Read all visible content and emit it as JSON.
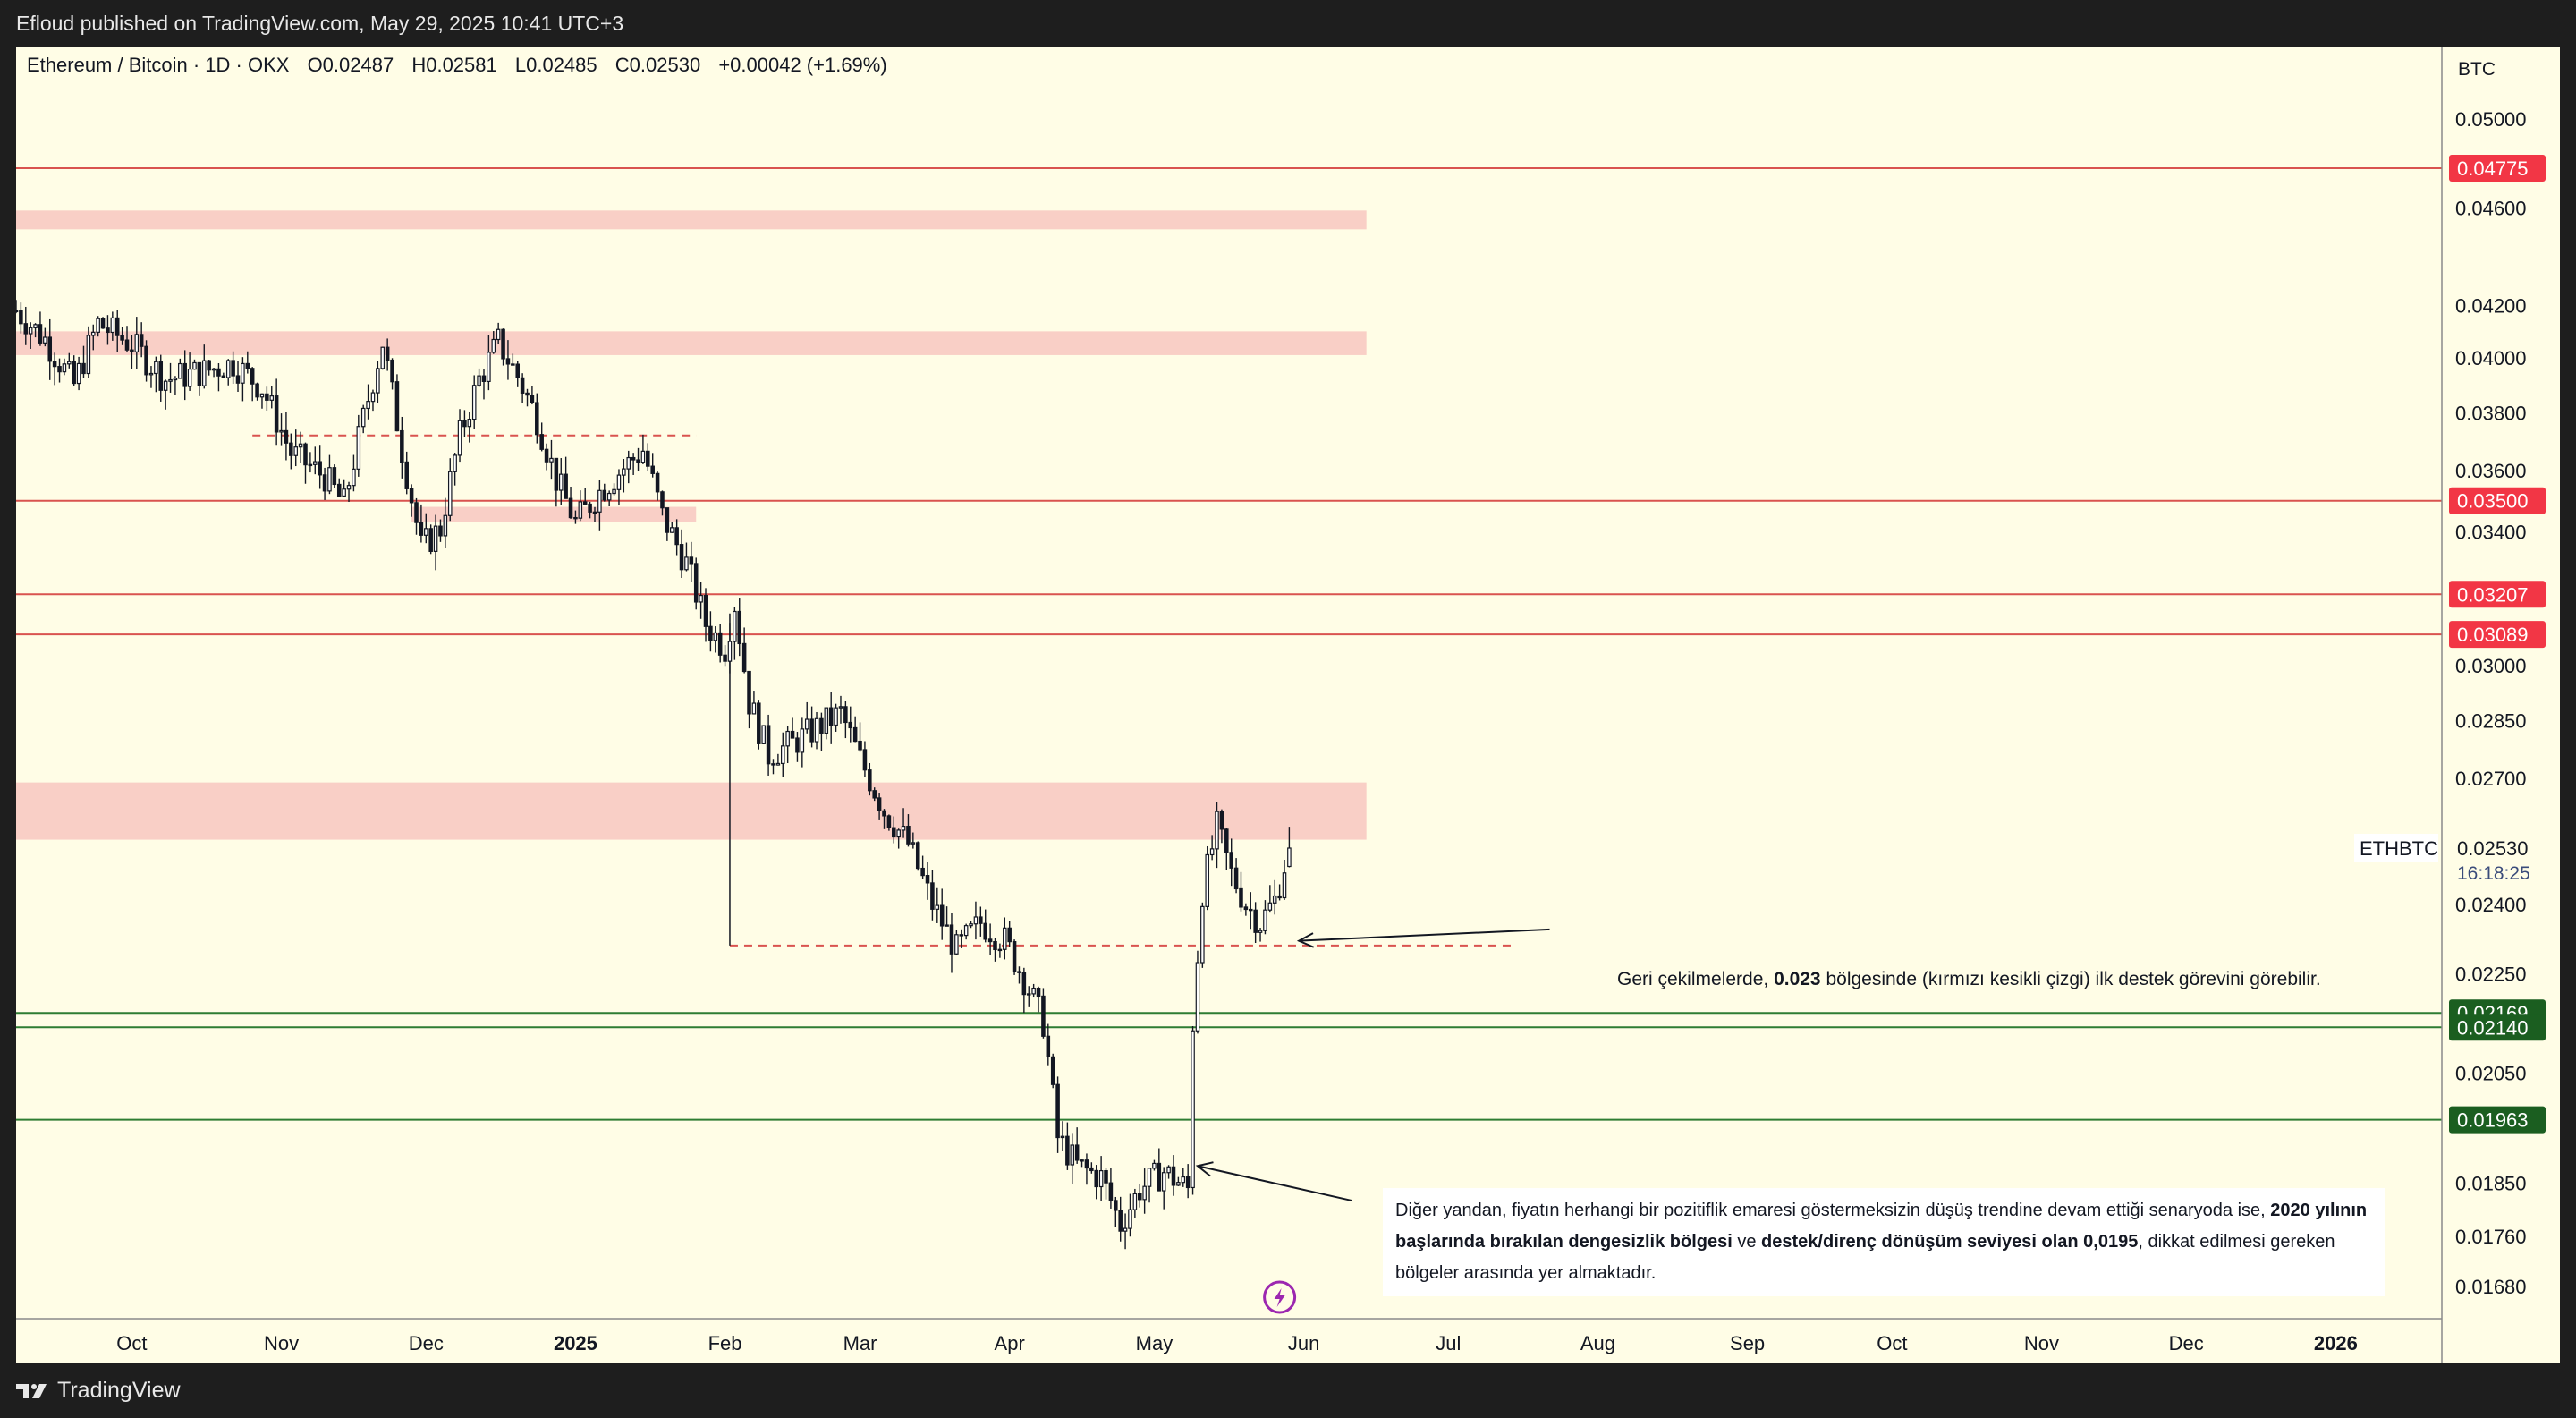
{
  "header": {
    "published": "Efloud published on TradingView.com, May 29, 2025 10:41 UTC+3"
  },
  "footer": {
    "brand": "TradingView"
  },
  "legend": {
    "symbol": "Ethereum / Bitcoin · 1D · OKX",
    "open": "O0.02487",
    "high": "H0.02581",
    "low": "L0.02485",
    "close": "C0.02530",
    "change": "+0.00042 (+1.69%)"
  },
  "axis_currency": "BTC",
  "symbol_tag": "ETHBTC",
  "last_price": "0.02530",
  "countdown": "16:18:25",
  "notes": {
    "note1_pre": "Geri çekilmelerde, ",
    "note1_bold": "0.023",
    "note1_post": " bölgesinde (kırmızı kesikli çizgi) ilk destek görevini görebilir.",
    "note2_a": "Diğer yandan, fiyatın herhangi bir pozitiflik emaresi göstermeksizin düşüş trendine devam ettiği senaryoda ise, ",
    "note2_b": "2020 yılının başlarında bırakılan dengesizlik bölgesi",
    "note2_c": " ve ",
    "note2_d": "destek/direnç dönüşüm seviyesi olan 0,0195",
    "note2_e": ", dikkat edilmesi gereken bölgeler arasında yer almaktadır."
  },
  "colors": {
    "background": "#fffde6",
    "red_line": "#d9534f",
    "red_label": "#f23645",
    "green_line": "#2e7d32",
    "green_label": "#1b5e20",
    "zone": "#f9cfc6",
    "candle": "#131722"
  },
  "chart_data": {
    "type": "candlestick",
    "title": "Ethereum / Bitcoin · 1D · OKX",
    "ylabel": "BTC",
    "y_scale": "log",
    "ylim": [
      0.0163,
      0.0535
    ],
    "y_ticks": [
      0.05,
      0.046,
      0.042,
      0.04,
      0.038,
      0.036,
      0.034,
      0.03,
      0.0285,
      0.027,
      0.024,
      0.0225,
      0.0205,
      0.0185,
      0.0176,
      0.0168
    ],
    "y_tick_labels": [
      "0.05000",
      "0.04600",
      "0.04200",
      "0.04000",
      "0.03800",
      "0.03600",
      "0.03400",
      "0.03000",
      "0.02850",
      "0.02700",
      "0.02400",
      "0.02250",
      "0.02050",
      "0.01850",
      "0.01760",
      "0.01680"
    ],
    "x_range": [
      "2024-09-07",
      "2026-01-23"
    ],
    "x_ticks": [
      {
        "date": "2024-10-01",
        "label": "Oct"
      },
      {
        "date": "2024-11-01",
        "label": "Nov"
      },
      {
        "date": "2024-12-01",
        "label": "Dec"
      },
      {
        "date": "2025-01-01",
        "label": "2025",
        "bold": true
      },
      {
        "date": "2025-02-01",
        "label": "Feb"
      },
      {
        "date": "2025-03-01",
        "label": "Mar"
      },
      {
        "date": "2025-04-01",
        "label": "Apr"
      },
      {
        "date": "2025-05-01",
        "label": "May"
      },
      {
        "date": "2025-06-01",
        "label": "Jun"
      },
      {
        "date": "2025-07-01",
        "label": "Jul"
      },
      {
        "date": "2025-08-01",
        "label": "Aug"
      },
      {
        "date": "2025-09-01",
        "label": "Sep"
      },
      {
        "date": "2025-10-01",
        "label": "Oct"
      },
      {
        "date": "2025-11-01",
        "label": "Nov"
      },
      {
        "date": "2025-12-01",
        "label": "Dec"
      },
      {
        "date": "2026-01-01",
        "label": "2026",
        "bold": true
      }
    ],
    "price_path": [
      [
        "2024-09-07",
        0.0418
      ],
      [
        "2024-09-13",
        0.0407
      ],
      [
        "2024-09-19",
        0.039
      ],
      [
        "2024-09-24",
        0.0413
      ],
      [
        "2024-10-01",
        0.0405
      ],
      [
        "2024-10-08",
        0.0392
      ],
      [
        "2024-10-16",
        0.0395
      ],
      [
        "2024-10-22",
        0.0398
      ],
      [
        "2024-10-28",
        0.0389
      ],
      [
        "2024-11-03",
        0.0366
      ],
      [
        "2024-11-10",
        0.0358
      ],
      [
        "2024-11-14",
        0.0349
      ],
      [
        "2024-11-19",
        0.0385
      ],
      [
        "2024-11-22",
        0.0406
      ],
      [
        "2024-11-26",
        0.0367
      ],
      [
        "2024-11-30",
        0.0335
      ],
      [
        "2024-12-04",
        0.0341
      ],
      [
        "2024-12-08",
        0.0372
      ],
      [
        "2024-12-12",
        0.0392
      ],
      [
        "2024-12-16",
        0.0406
      ],
      [
        "2024-12-20",
        0.0393
      ],
      [
        "2024-12-24",
        0.0378
      ],
      [
        "2024-12-28",
        0.0357
      ],
      [
        "2025-01-01",
        0.0343
      ],
      [
        "2025-01-06",
        0.0353
      ],
      [
        "2025-01-11",
        0.0361
      ],
      [
        "2025-01-15",
        0.0367
      ],
      [
        "2025-01-19",
        0.0345
      ],
      [
        "2025-01-24",
        0.033
      ],
      [
        "2025-01-28",
        0.0312
      ],
      [
        "2025-02-01",
        0.0305
      ],
      [
        "2025-02-03",
        0.0318
      ],
      [
        "2025-02-06",
        0.029
      ],
      [
        "2025-02-10",
        0.0276
      ],
      [
        "2025-02-15",
        0.0279
      ],
      [
        "2025-02-20",
        0.0283
      ],
      [
        "2025-02-25",
        0.0287
      ],
      [
        "2025-03-01",
        0.0275
      ],
      [
        "2025-03-06",
        0.0262
      ],
      [
        "2025-03-11",
        0.0254
      ],
      [
        "2025-03-16",
        0.024
      ],
      [
        "2025-03-21",
        0.023
      ],
      [
        "2025-03-26",
        0.0236
      ],
      [
        "2025-03-31",
        0.0232
      ],
      [
        "2025-04-04",
        0.0224
      ],
      [
        "2025-04-08",
        0.0215
      ],
      [
        "2025-04-11",
        0.0193
      ],
      [
        "2025-04-15",
        0.0188
      ],
      [
        "2025-04-20",
        0.0186
      ],
      [
        "2025-04-24",
        0.0178
      ],
      [
        "2025-04-28",
        0.0184
      ],
      [
        "2025-05-03",
        0.0187
      ],
      [
        "2025-05-08",
        0.0184
      ],
      [
        "2025-05-09",
        0.0215
      ],
      [
        "2025-05-11",
        0.0243
      ],
      [
        "2025-05-14",
        0.0258
      ],
      [
        "2025-05-17",
        0.0247
      ],
      [
        "2025-05-20",
        0.024
      ],
      [
        "2025-05-23",
        0.0236
      ],
      [
        "2025-05-26",
        0.0241
      ],
      [
        "2025-05-29",
        0.0253
      ]
    ],
    "horizontal_lines": [
      {
        "value": 0.04775,
        "label": "0.04775",
        "color": "red"
      },
      {
        "value": 0.035,
        "label": "0.03500",
        "color": "red"
      },
      {
        "value": 0.03207,
        "label": "0.03207",
        "color": "red"
      },
      {
        "value": 0.03089,
        "label": "0.03089",
        "color": "red"
      },
      {
        "value": 0.02169,
        "label": "0.02169",
        "color": "green"
      },
      {
        "value": 0.0214,
        "label": "0.02140",
        "color": "green"
      },
      {
        "value": 0.01963,
        "label": "0.01963",
        "color": "green"
      }
    ],
    "zones": [
      {
        "x": [
          "2024-09-07",
          "2025-06-14"
        ],
        "y": [
          0.0451,
          0.0459
        ]
      },
      {
        "x": [
          "2024-09-07",
          "2025-06-14"
        ],
        "y": [
          0.0401,
          0.041
        ]
      },
      {
        "x": [
          "2024-11-28",
          "2025-01-26"
        ],
        "y": [
          0.0343,
          0.0348
        ]
      },
      {
        "x": [
          "2024-09-07",
          "2025-06-14"
        ],
        "y": [
          0.0255,
          0.0269
        ]
      }
    ],
    "dashed_levels": [
      {
        "value": 0.0372,
        "x": [
          "2024-10-26",
          "2025-01-26"
        ]
      },
      {
        "value": 0.0231,
        "x": [
          "2025-02-02",
          "2025-07-14"
        ]
      }
    ],
    "arrows": [
      {
        "from": [
          "2025-07-22",
          0.02345
        ],
        "to": [
          "2025-05-31",
          0.0232
        ]
      },
      {
        "from": [
          "2025-06-11",
          0.0182
        ],
        "to": [
          "2025-05-10",
          0.0188
        ]
      }
    ]
  }
}
